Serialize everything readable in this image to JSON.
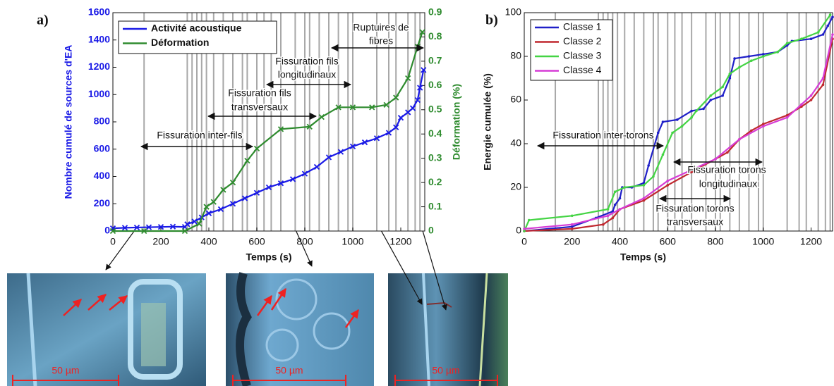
{
  "chart_data": [
    {
      "type": "line",
      "panel_label": "a)",
      "xlabel": "Temps (s)",
      "ylabel": "Nombre cumulé de sources d'EA",
      "y2label": "Déformation (%)",
      "xlim": [
        0,
        1300
      ],
      "xticks": [
        0,
        200,
        400,
        600,
        800,
        1000,
        1200
      ],
      "ylim": [
        0,
        1600
      ],
      "yticks": [
        0,
        200,
        400,
        600,
        800,
        1000,
        1200,
        1400,
        1600
      ],
      "y2lim": [
        0,
        0.9
      ],
      "y2ticks": [
        0,
        0.1,
        0.2,
        0.3,
        0.4,
        0.5,
        0.6,
        0.7,
        0.8,
        0.9
      ],
      "legend": "upper left",
      "event_lines": [
        130,
        310,
        330,
        350,
        370,
        390,
        420,
        460,
        500,
        540,
        560,
        600,
        630,
        660,
        700,
        760,
        800,
        820,
        860,
        900,
        940,
        980,
        1000,
        1100,
        1150,
        1180,
        1230,
        1260,
        1280
      ],
      "series": [
        {
          "name": "Activité acoustique",
          "color": "#1a1ae6",
          "x": [
            0,
            50,
            100,
            150,
            200,
            250,
            300,
            310,
            340,
            370,
            400,
            450,
            500,
            550,
            600,
            650,
            700,
            750,
            800,
            850,
            900,
            950,
            1000,
            1050,
            1100,
            1150,
            1180,
            1200,
            1230,
            1250,
            1270,
            1280,
            1295
          ],
          "values": [
            20,
            24,
            26,
            28,
            30,
            32,
            30,
            50,
            70,
            100,
            130,
            160,
            200,
            240,
            280,
            320,
            350,
            380,
            420,
            470,
            540,
            580,
            620,
            650,
            680,
            720,
            760,
            830,
            870,
            900,
            960,
            1050,
            1180
          ]
        },
        {
          "name": "Déformation",
          "color": "#2e8b2e",
          "axis": "y2",
          "x": [
            0,
            130,
            300,
            360,
            390,
            420,
            460,
            500,
            560,
            600,
            700,
            820,
            870,
            940,
            1000,
            1080,
            1140,
            1180,
            1230,
            1270,
            1290
          ],
          "values": [
            0,
            0,
            0,
            0.03,
            0.1,
            0.12,
            0.17,
            0.2,
            0.29,
            0.34,
            0.42,
            0.43,
            0.47,
            0.51,
            0.51,
            0.51,
            0.52,
            0.55,
            0.63,
            0.76,
            0.82
          ]
        }
      ],
      "annotations": [
        [
          "Fissuration inter-fils"
        ],
        [
          "Fissuration fils",
          "transversaux"
        ],
        [
          "Fissuration fils",
          "longitudinaux"
        ],
        [
          "Ruptuires de",
          "fibres"
        ]
      ]
    },
    {
      "type": "line",
      "panel_label": "b)",
      "xlabel": "Temps (s)",
      "ylabel": "Energie cumulée (%)",
      "xlim": [
        0,
        1290
      ],
      "xticks": [
        0,
        200,
        400,
        600,
        800,
        1000,
        1200
      ],
      "ylim": [
        0,
        100
      ],
      "yticks": [
        0,
        20,
        40,
        60,
        80,
        100
      ],
      "legend": "upper left",
      "event_lines": [
        130,
        310,
        330,
        350,
        370,
        390,
        420,
        460,
        500,
        540,
        560,
        600,
        630,
        660,
        700,
        760,
        800,
        820,
        860,
        900,
        940,
        980,
        1000,
        1100,
        1150,
        1180,
        1230,
        1260,
        1280
      ],
      "series": [
        {
          "name": "Classe 1",
          "color": "#1f1fc8",
          "x": [
            0,
            200,
            300,
            370,
            380,
            400,
            410,
            450,
            500,
            520,
            560,
            580,
            640,
            700,
            750,
            780,
            830,
            860,
            880,
            940,
            1000,
            1060,
            1100,
            1120,
            1200,
            1250,
            1270,
            1290
          ],
          "values": [
            0,
            2,
            6,
            9,
            12,
            15,
            20,
            20,
            22,
            30,
            45,
            50,
            51,
            55,
            56,
            60,
            62,
            70,
            79,
            80,
            81,
            82,
            85,
            87,
            88,
            90,
            94,
            98
          ]
        },
        {
          "name": "Classe 2",
          "color": "#c0282f",
          "x": [
            0,
            200,
            330,
            370,
            400,
            500,
            600,
            700,
            800,
            850,
            900,
            950,
            1000,
            1100,
            1160,
            1200,
            1250,
            1290
          ],
          "values": [
            0,
            1,
            3,
            6,
            10,
            14,
            21,
            27,
            33,
            36,
            42,
            46,
            49,
            53,
            57,
            60,
            67,
            88
          ]
        },
        {
          "name": "Classe 3",
          "color": "#44d444",
          "x": [
            0,
            20,
            200,
            350,
            380,
            420,
            500,
            540,
            580,
            620,
            660,
            700,
            720,
            780,
            830,
            860,
            900,
            950,
            1000,
            1060,
            1100,
            1160,
            1230,
            1280
          ],
          "values": [
            0,
            5,
            7,
            10,
            18,
            20,
            21,
            25,
            35,
            45,
            48,
            52,
            55,
            62,
            66,
            72,
            75,
            78,
            80,
            82,
            86,
            88,
            91,
            99
          ]
        },
        {
          "name": "Classe 4",
          "color": "#d63cd6",
          "x": [
            0,
            200,
            350,
            400,
            500,
            600,
            700,
            800,
            900,
            1000,
            1100,
            1160,
            1200,
            1250,
            1290
          ],
          "values": [
            1,
            3,
            7,
            10,
            15,
            23,
            28,
            33,
            42,
            48,
            52,
            58,
            62,
            70,
            90
          ]
        }
      ],
      "annotations": [
        [
          "Fissuration inter-torons"
        ],
        [
          "Fissuration torons",
          "longitudinaux"
        ],
        [
          "Fissuration torons",
          "transversaux"
        ]
      ]
    }
  ],
  "micrographs": [
    {
      "scale_label": "50 µm"
    },
    {
      "scale_label": "50 µm"
    },
    {
      "scale_label": "50 µm"
    }
  ]
}
